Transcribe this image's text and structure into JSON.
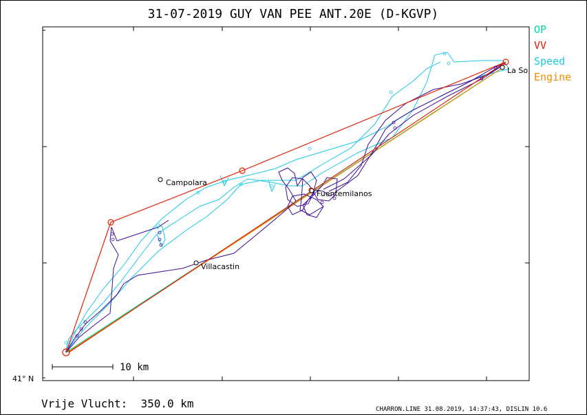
{
  "title": "31-07-2019   GUY VAN PEE   ANT.20E (D-KGVP)",
  "legend": [
    {
      "label": "OP",
      "color": "#00d7a0"
    },
    {
      "label": "VV",
      "color": "#e02000"
    },
    {
      "label": "Speed",
      "color": "#19c8e6"
    },
    {
      "label": "Engine",
      "color": "#f08c00"
    }
  ],
  "latitude_label": "41° N",
  "scale_bar_label": "10 km",
  "distance_text": "Vrije Vlucht:  350.0 km",
  "footer_text": "CHARRON.LINE 31.08.2019, 14:37:43, DISLIN 10.6",
  "places": [
    {
      "name": "Campolara"
    },
    {
      "name": "Fuentemilanos"
    },
    {
      "name": "Villacastin"
    },
    {
      "name": "La So"
    }
  ],
  "colors": {
    "track": "#3c0a96",
    "speed": "#19c8e6",
    "vv": "#e02000",
    "op": "#00d7a0",
    "engine": "#f08c00"
  }
}
